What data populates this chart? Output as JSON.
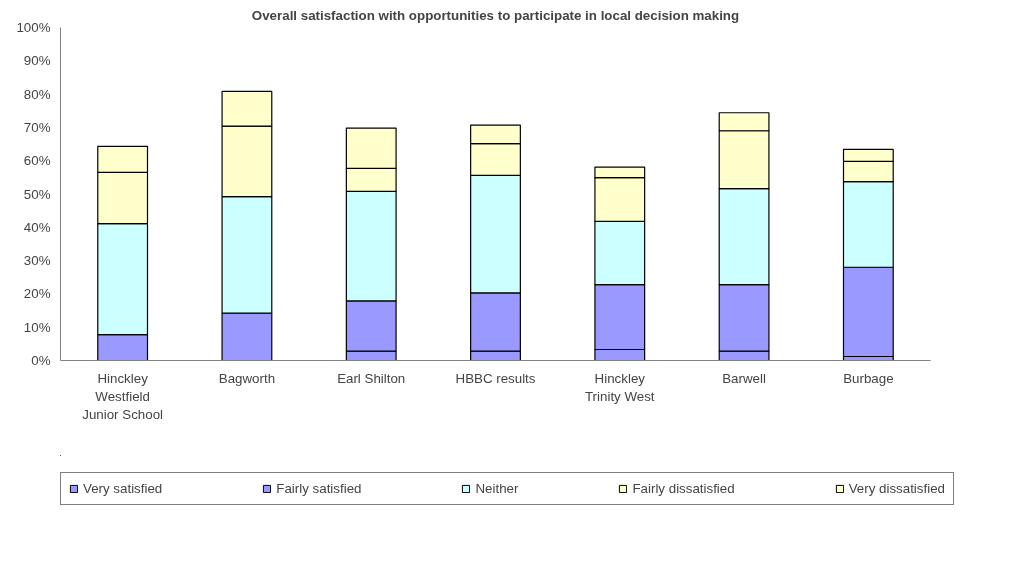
{
  "chart_data": {
    "type": "bar",
    "stacked": true,
    "title": "Overall satisfaction with opportunities to participate in local decision making",
    "categories": [
      "Hinckley Westfield Junior School",
      "Bagworth",
      "Earl Shilton",
      "HBBC results",
      "Hinckley Trinity West",
      "Barwell",
      "Burbage"
    ],
    "series": [
      {
        "name": "Very satisfied",
        "color": "#9999ff",
        "values": [
          0,
          0,
          2.8,
          2.8,
          3.3,
          2.8,
          1.2
        ]
      },
      {
        "name": "Fairly satisfied",
        "color": "#9999ff",
        "values": [
          7.8,
          14.2,
          15.1,
          17.5,
          19.5,
          20.0,
          26.8
        ]
      },
      {
        "name": "Neither",
        "color": "#ccffff",
        "values": [
          33.3,
          35.0,
          32.9,
          35.3,
          19.0,
          28.8,
          25.7
        ]
      },
      {
        "name": "Fairly dissatisfied",
        "color": "#ffffcc",
        "values": [
          15.4,
          21.2,
          6.9,
          9.5,
          13.1,
          17.4,
          6.1
        ]
      },
      {
        "name": "Very dissatisfied",
        "color": "#ffffcc",
        "values": [
          7.8,
          10.4,
          12.1,
          5.6,
          3.2,
          5.4,
          3.6
        ]
      }
    ],
    "ylim": [
      0,
      100
    ],
    "yticks": [
      {
        "value": 0,
        "label": "0%"
      },
      {
        "value": 10,
        "label": "10%"
      },
      {
        "value": 20,
        "label": "20%"
      },
      {
        "value": 30,
        "label": "30%"
      },
      {
        "value": 40,
        "label": "40%"
      },
      {
        "value": 50,
        "label": "50%"
      },
      {
        "value": 60,
        "label": "60%"
      },
      {
        "value": 70,
        "label": "70%"
      },
      {
        "value": 80,
        "label": "80%"
      },
      {
        "value": 90,
        "label": "90%"
      },
      {
        "value": 100,
        "label": "100%"
      }
    ],
    "grid": false,
    "legend": "bottom"
  }
}
